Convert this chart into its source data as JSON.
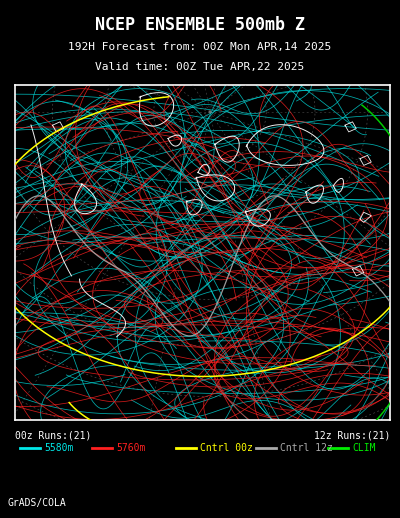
{
  "title_line1": "NCEP ENSEMBLE 500mb Z",
  "title_line2": "192H Forecast from: 00Z Mon APR,14 2025",
  "title_line3": "Valid time: 00Z Tue APR,22 2025",
  "background_color": "#000000",
  "map_border_color": "#ffffff",
  "title_color": "#ffffff",
  "label_00z": "00z Runs:(21)",
  "label_12z": "12z Runs:(21)",
  "legend_items": [
    {
      "label": "5580m",
      "color": "#00e8e8"
    },
    {
      "label": "5760m",
      "color": "#ff2020"
    },
    {
      "label": "Cntrl 00z",
      "color": "#ffff00"
    },
    {
      "label": "Cntrl 12z",
      "color": "#aaaaaa"
    },
    {
      "label": "CLIM",
      "color": "#00ee00"
    }
  ],
  "grads_label": "GrADS/COLA",
  "cyan_color": "#00d8d8",
  "red_color": "#ff2020",
  "yellow_color": "#ffff00",
  "gray_color": "#aaaaaa",
  "green_color": "#00cc00",
  "fig_width": 4.0,
  "fig_height": 5.18,
  "dpi": 100,
  "title_fontsize": 12,
  "subtitle_fontsize": 8,
  "label_fontsize": 7,
  "legend_fontsize": 7
}
